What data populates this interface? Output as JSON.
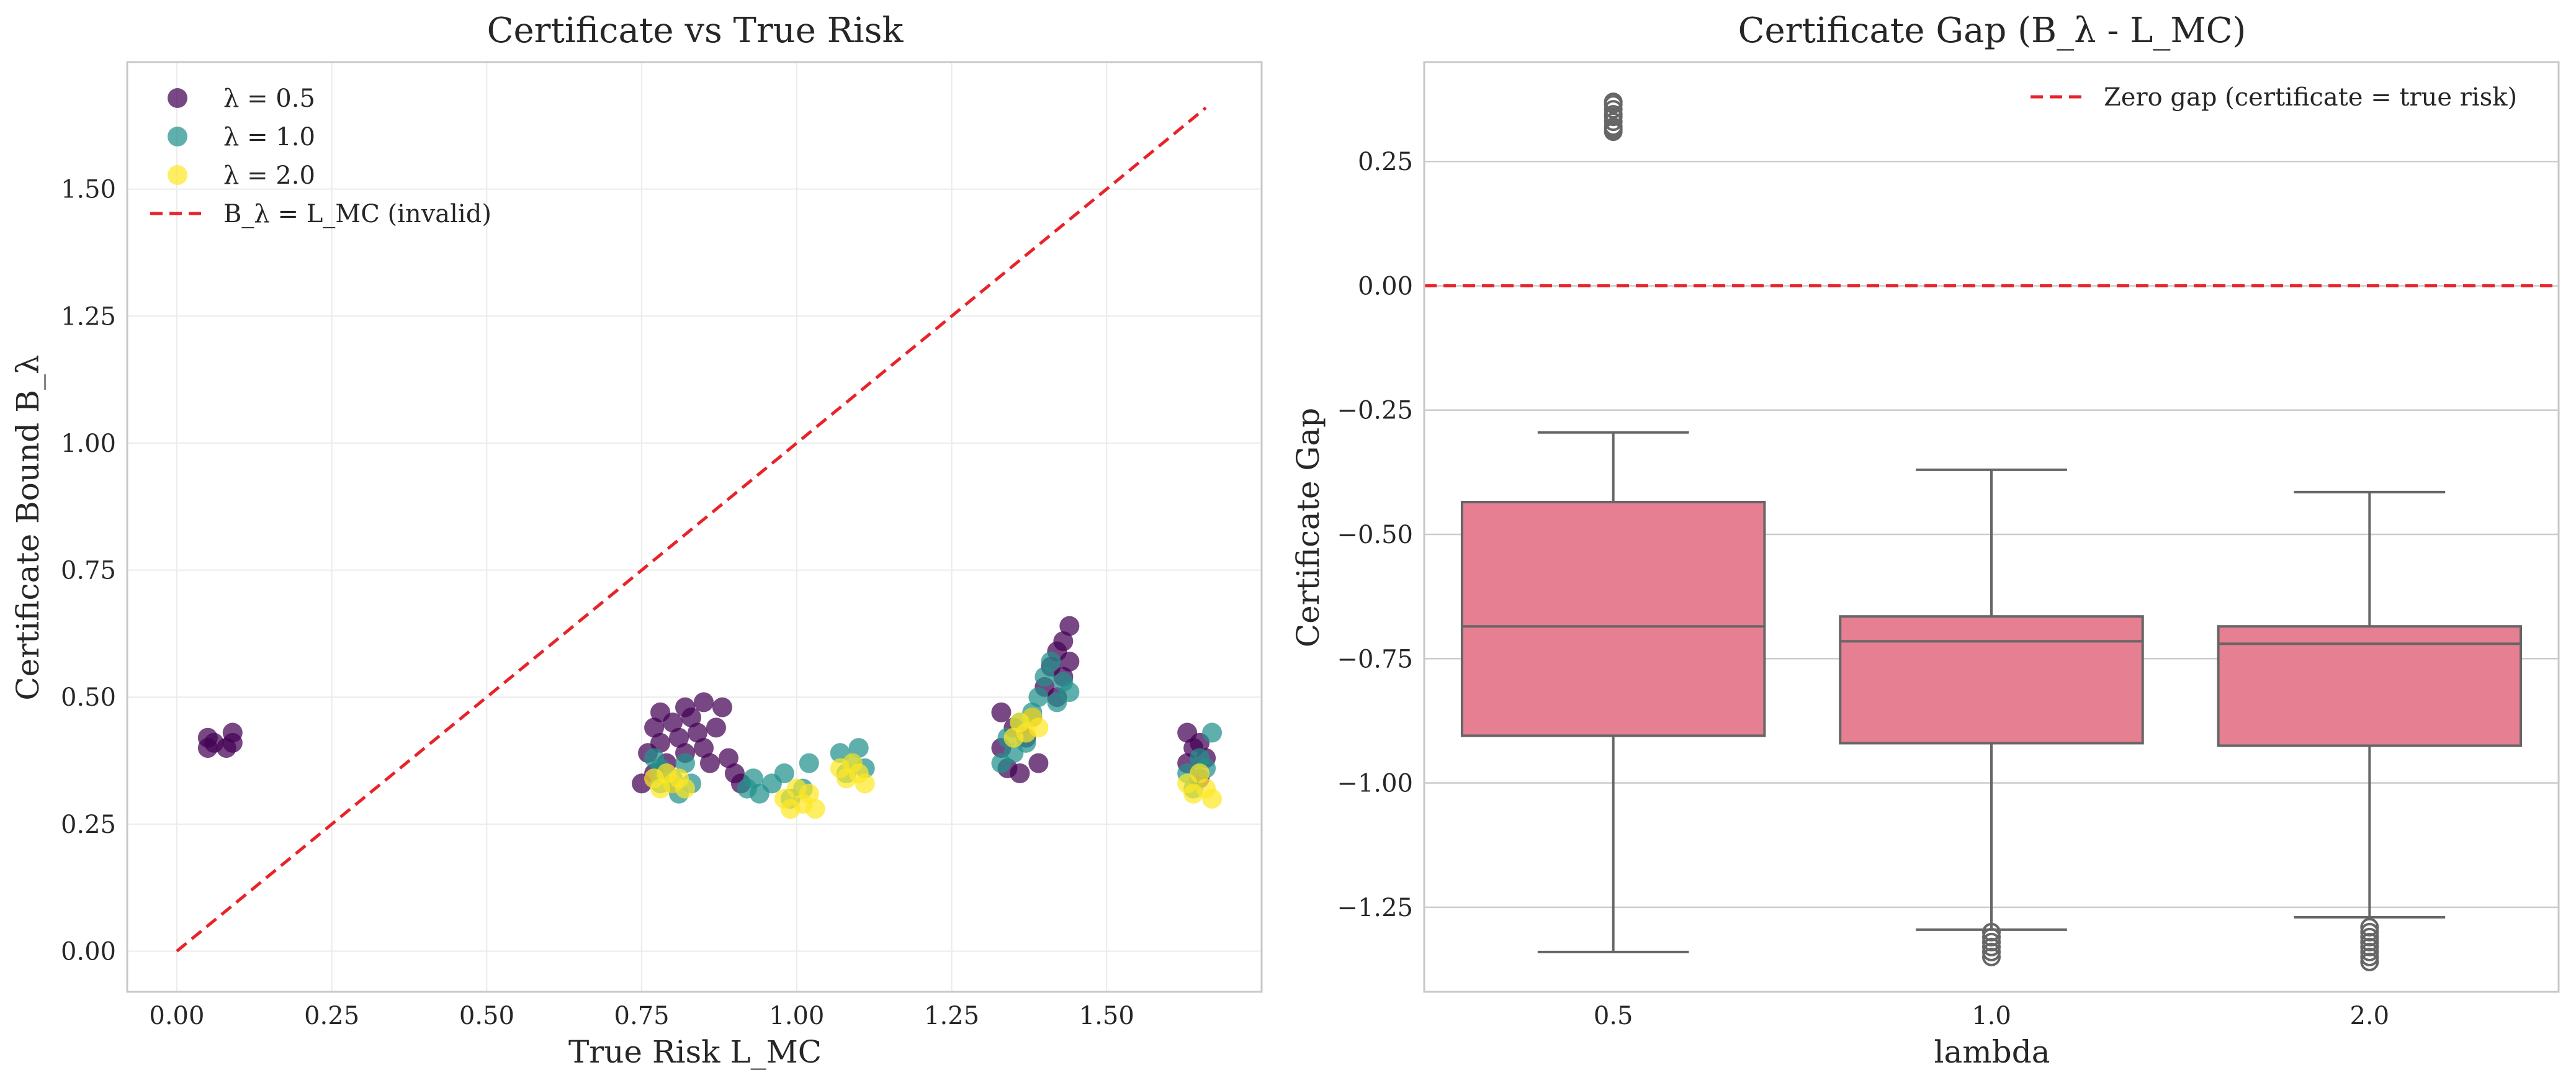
{
  "chart_data": [
    {
      "type": "scatter",
      "title": "Certificate vs True Risk",
      "xlabel": "True Risk L_MC",
      "ylabel": "Certificate Bound B_λ",
      "xlim": [
        -0.08,
        1.75
      ],
      "ylim": [
        -0.08,
        1.75
      ],
      "xticks": [
        "0.00",
        "0.25",
        "0.50",
        "0.75",
        "1.00",
        "1.25",
        "1.50"
      ],
      "yticks": [
        "0.00",
        "0.25",
        "0.50",
        "0.75",
        "1.00",
        "1.25",
        "1.50"
      ],
      "grid": true,
      "legend_position": "top-left",
      "series": [
        {
          "name": "λ = 0.5",
          "color": "#440154",
          "points": [
            [
              0.05,
              0.4
            ],
            [
              0.05,
              0.42
            ],
            [
              0.06,
              0.41
            ],
            [
              0.08,
              0.4
            ],
            [
              0.09,
              0.43
            ],
            [
              0.09,
              0.41
            ],
            [
              0.75,
              0.33
            ],
            [
              0.76,
              0.39
            ],
            [
              0.77,
              0.35
            ],
            [
              0.77,
              0.44
            ],
            [
              0.78,
              0.47
            ],
            [
              0.78,
              0.41
            ],
            [
              0.79,
              0.37
            ],
            [
              0.8,
              0.45
            ],
            [
              0.8,
              0.33
            ],
            [
              0.81,
              0.42
            ],
            [
              0.82,
              0.48
            ],
            [
              0.82,
              0.39
            ],
            [
              0.83,
              0.46
            ],
            [
              0.84,
              0.43
            ],
            [
              0.85,
              0.49
            ],
            [
              0.85,
              0.4
            ],
            [
              0.86,
              0.37
            ],
            [
              0.87,
              0.44
            ],
            [
              0.88,
              0.48
            ],
            [
              0.89,
              0.38
            ],
            [
              0.9,
              0.35
            ],
            [
              0.91,
              0.33
            ],
            [
              1.33,
              0.4
            ],
            [
              1.33,
              0.47
            ],
            [
              1.34,
              0.36
            ],
            [
              1.35,
              0.44
            ],
            [
              1.36,
              0.35
            ],
            [
              1.37,
              0.42
            ],
            [
              1.38,
              0.46
            ],
            [
              1.39,
              0.37
            ],
            [
              1.4,
              0.52
            ],
            [
              1.41,
              0.56
            ],
            [
              1.42,
              0.59
            ],
            [
              1.42,
              0.5
            ],
            [
              1.43,
              0.54
            ],
            [
              1.43,
              0.61
            ],
            [
              1.44,
              0.64
            ],
            [
              1.44,
              0.57
            ],
            [
              1.63,
              0.37
            ],
            [
              1.63,
              0.43
            ],
            [
              1.64,
              0.4
            ],
            [
              1.65,
              0.34
            ],
            [
              1.65,
              0.41
            ],
            [
              1.66,
              0.38
            ]
          ]
        },
        {
          "name": "λ = 1.0",
          "color": "#21918c",
          "points": [
            [
              0.77,
              0.38
            ],
            [
              0.78,
              0.33
            ],
            [
              0.78,
              0.36
            ],
            [
              0.8,
              0.34
            ],
            [
              0.81,
              0.31
            ],
            [
              0.82,
              0.37
            ],
            [
              0.83,
              0.33
            ],
            [
              0.92,
              0.32
            ],
            [
              0.93,
              0.34
            ],
            [
              0.94,
              0.31
            ],
            [
              0.96,
              0.33
            ],
            [
              0.98,
              0.35
            ],
            [
              0.99,
              0.3
            ],
            [
              1.01,
              0.32
            ],
            [
              1.02,
              0.37
            ],
            [
              1.07,
              0.39
            ],
            [
              1.08,
              0.35
            ],
            [
              1.09,
              0.37
            ],
            [
              1.1,
              0.4
            ],
            [
              1.11,
              0.36
            ],
            [
              1.33,
              0.37
            ],
            [
              1.34,
              0.42
            ],
            [
              1.35,
              0.39
            ],
            [
              1.36,
              0.45
            ],
            [
              1.37,
              0.41
            ],
            [
              1.38,
              0.47
            ],
            [
              1.39,
              0.5
            ],
            [
              1.4,
              0.54
            ],
            [
              1.41,
              0.57
            ],
            [
              1.42,
              0.49
            ],
            [
              1.43,
              0.53
            ],
            [
              1.44,
              0.51
            ],
            [
              1.63,
              0.35
            ],
            [
              1.64,
              0.32
            ],
            [
              1.65,
              0.38
            ],
            [
              1.66,
              0.36
            ],
            [
              1.67,
              0.43
            ]
          ]
        },
        {
          "name": "λ = 2.0",
          "color": "#fde725",
          "points": [
            [
              0.77,
              0.34
            ],
            [
              0.78,
              0.32
            ],
            [
              0.79,
              0.35
            ],
            [
              0.8,
              0.33
            ],
            [
              0.81,
              0.34
            ],
            [
              0.82,
              0.32
            ],
            [
              0.98,
              0.3
            ],
            [
              0.99,
              0.28
            ],
            [
              1.0,
              0.32
            ],
            [
              1.01,
              0.29
            ],
            [
              1.02,
              0.31
            ],
            [
              1.03,
              0.28
            ],
            [
              1.07,
              0.36
            ],
            [
              1.08,
              0.34
            ],
            [
              1.09,
              0.37
            ],
            [
              1.1,
              0.35
            ],
            [
              1.11,
              0.33
            ],
            [
              1.35,
              0.42
            ],
            [
              1.36,
              0.45
            ],
            [
              1.37,
              0.43
            ],
            [
              1.38,
              0.46
            ],
            [
              1.39,
              0.44
            ],
            [
              1.63,
              0.33
            ],
            [
              1.64,
              0.31
            ],
            [
              1.65,
              0.35
            ],
            [
              1.66,
              0.32
            ],
            [
              1.67,
              0.3
            ]
          ]
        }
      ],
      "reference_line": {
        "name": "B_λ = L_MC (invalid)",
        "color": "#e8232a",
        "points": [
          [
            0,
            0
          ],
          [
            1.66,
            1.66
          ]
        ]
      }
    },
    {
      "type": "box",
      "title": "Certificate Gap (B_λ - L_MC)",
      "xlabel": "lambda",
      "ylabel": "Certificate Gap",
      "categories": [
        "0.5",
        "1.0",
        "2.0"
      ],
      "ylim": [
        -1.42,
        0.45
      ],
      "yticks": [
        "0.25",
        "0.00",
        "−0.25",
        "−0.50",
        "−0.75",
        "−1.00",
        "−1.25"
      ],
      "grid": true,
      "legend_position": "top-right",
      "box_color": "#e67f91",
      "boxes": [
        {
          "category": "0.5",
          "whisker_low": -1.34,
          "q1": -0.905,
          "median": -0.685,
          "q3": -0.435,
          "whisker_high": -0.295,
          "outliers": [
            0.31,
            0.315,
            0.32,
            0.33,
            0.34,
            0.345,
            0.355,
            0.365,
            0.37
          ]
        },
        {
          "category": "1.0",
          "whisker_low": -1.295,
          "q1": -0.92,
          "median": -0.715,
          "q3": -0.665,
          "whisker_high": -0.37,
          "outliers": [
            -1.3,
            -1.31,
            -1.32,
            -1.33,
            -1.34,
            -1.35
          ]
        },
        {
          "category": "2.0",
          "whisker_low": -1.27,
          "q1": -0.925,
          "median": -0.72,
          "q3": -0.685,
          "whisker_high": -0.415,
          "outliers": [
            -1.29,
            -1.3,
            -1.31,
            -1.32,
            -1.33,
            -1.34,
            -1.35,
            -1.36
          ]
        }
      ],
      "reference_line": {
        "name": "Zero gap (certificate = true risk)",
        "color": "#e8232a",
        "y": 0
      }
    }
  ]
}
